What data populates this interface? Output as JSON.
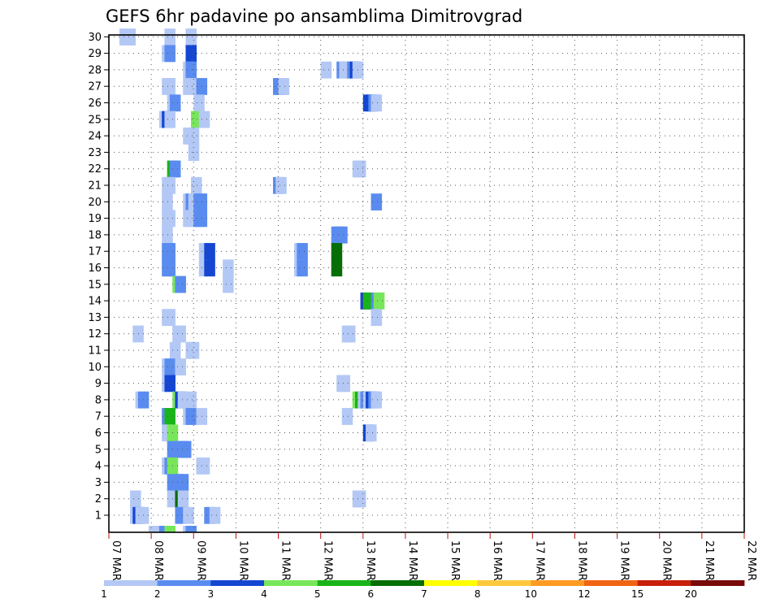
{
  "chart_data": {
    "type": "heatmap",
    "title": "GEFS 6hr padavine po ansamblima Dimitrovgrad",
    "x_tick_labels": [
      "07 MAR",
      "08 MAR",
      "09 MAR",
      "10 MAR",
      "11 MAR",
      "12 MAR",
      "13 MAR",
      "14 MAR",
      "15 MAR",
      "16 MAR",
      "17 MAR",
      "18 MAR",
      "19 MAR",
      "20 MAR",
      "21 MAR",
      "22 MAR"
    ],
    "xlim_days": [
      0,
      15
    ],
    "x_step": "6hr",
    "y_members": [
      1,
      30
    ],
    "grid": true,
    "legend": {
      "position": "bottom",
      "labels": [
        "1",
        "2",
        "3",
        "4",
        "5",
        "6",
        "7",
        "8",
        "10",
        "12",
        "15",
        "20"
      ],
      "colors": [
        "#b4c8f5",
        "#5a8cf0",
        "#1446d2",
        "#78e65a",
        "#19b419",
        "#056e05",
        "#ffff00",
        "#ffc83c",
        "#ff9b23",
        "#f06414",
        "#c81e0a",
        "#780a0a"
      ]
    },
    "cells": [
      {
        "m": 30,
        "t": [
          1.0,
          1.5
        ],
        "c": 1
      },
      {
        "m": 30,
        "t": [
          5.25
        ],
        "c": 1
      },
      {
        "m": 30,
        "t": [
          7.25
        ],
        "c": 1
      },
      {
        "m": 29,
        "t": [
          5.0
        ],
        "c": 1
      },
      {
        "m": 29,
        "t": [
          5.25
        ],
        "c": 2
      },
      {
        "m": 29,
        "t": [
          7.25
        ],
        "c": 3
      },
      {
        "m": 28,
        "t": [
          7.0
        ],
        "c": 1
      },
      {
        "m": 28,
        "t": [
          7.25
        ],
        "c": 2
      },
      {
        "m": 28,
        "t": [
          20.0
        ],
        "c": 1
      },
      {
        "m": 28,
        "t": [
          21.5
        ],
        "c": 2
      },
      {
        "m": 28,
        "t": [
          21.75,
          22.0
        ],
        "c": 1
      },
      {
        "m": 28,
        "t": [
          22.5
        ],
        "c": 2
      },
      {
        "m": 28,
        "t": [
          22.75
        ],
        "c": 3
      },
      {
        "m": 28,
        "t": [
          23.0
        ],
        "c": 1
      },
      {
        "m": 27,
        "t": [
          5.0,
          5.25
        ],
        "c": 1
      },
      {
        "m": 27,
        "t": [
          7.0,
          7.25
        ],
        "c": 1
      },
      {
        "m": 27,
        "t": [
          8.0
        ],
        "c": 1
      },
      {
        "m": 27,
        "t": [
          8.25
        ],
        "c": 2
      },
      {
        "m": 27,
        "t": [
          15.5,
          15.75
        ],
        "c": 2
      },
      {
        "m": 27,
        "t": [
          16.0
        ],
        "c": 1
      },
      {
        "m": 26,
        "t": [
          5.5
        ],
        "c": 1
      },
      {
        "m": 26,
        "t": [
          5.75
        ],
        "c": 2
      },
      {
        "m": 26,
        "t": [
          8.0
        ],
        "c": 1
      },
      {
        "m": 26,
        "t": [
          24.0,
          24.25
        ],
        "c": 3
      },
      {
        "m": 26,
        "t": [
          24.5
        ],
        "c": 2
      },
      {
        "m": 26,
        "t": [
          24.75
        ],
        "c": 1
      },
      {
        "m": 25,
        "t": [
          4.75
        ],
        "c": 1
      },
      {
        "m": 25,
        "t": [
          5.0
        ],
        "c": 3
      },
      {
        "m": 25,
        "t": [
          5.25
        ],
        "c": 1
      },
      {
        "m": 25,
        "t": [
          7.75
        ],
        "c": 4
      },
      {
        "m": 25,
        "t": [
          8.5
        ],
        "c": 1
      },
      {
        "m": 24,
        "t": [
          7.0,
          7.25,
          7.5
        ],
        "c": 1
      },
      {
        "m": 23,
        "t": [
          7.5
        ],
        "c": 1
      },
      {
        "m": 22,
        "t": [
          5.5
        ],
        "c": 5
      },
      {
        "m": 22,
        "t": [
          5.75
        ],
        "c": 2
      },
      {
        "m": 22,
        "t": [
          23.0,
          23.25
        ],
        "c": 1
      },
      {
        "m": 21,
        "t": [
          5.0,
          5.25
        ],
        "c": 1
      },
      {
        "m": 21,
        "t": [
          7.75
        ],
        "c": 1
      },
      {
        "m": 21,
        "t": [
          15.5
        ],
        "c": 2
      },
      {
        "m": 21,
        "t": [
          15.75
        ],
        "c": 1
      },
      {
        "m": 20,
        "t": [
          5.0
        ],
        "c": 1
      },
      {
        "m": 20,
        "t": [
          7.0
        ],
        "c": 1
      },
      {
        "m": 20,
        "t": [
          7.25
        ],
        "c": 2
      },
      {
        "m": 20,
        "t": [
          7.5
        ],
        "c": 1
      },
      {
        "m": 20,
        "t": [
          8.0,
          8.25
        ],
        "c": 2
      },
      {
        "m": 20,
        "t": [
          24.75
        ],
        "c": 2
      },
      {
        "m": 19,
        "t": [
          5.0
        ],
        "c": 1
      },
      {
        "m": 19,
        "t": [
          5.25
        ],
        "c": 1
      },
      {
        "m": 19,
        "t": [
          7.0,
          7.25,
          7.5
        ],
        "c": 1
      },
      {
        "m": 19,
        "t": [
          8.0,
          8.25
        ],
        "c": 2
      },
      {
        "m": 18,
        "t": [
          5.0
        ],
        "c": 1
      },
      {
        "m": 18,
        "t": [
          21.0,
          21.25,
          21.5
        ],
        "c": 2
      },
      {
        "m": 17,
        "t": [
          5.0,
          5.25
        ],
        "c": 2
      },
      {
        "m": 17,
        "t": [
          8.5
        ],
        "c": 1
      },
      {
        "m": 17,
        "t": [
          9.0
        ],
        "c": 3
      },
      {
        "m": 17,
        "t": [
          17.5
        ],
        "c": 1
      },
      {
        "m": 17,
        "t": [
          17.75
        ],
        "c": 2
      },
      {
        "m": 17,
        "t": [
          21.0
        ],
        "c": 6
      },
      {
        "m": 16,
        "t": [
          5.0,
          5.25
        ],
        "c": 2
      },
      {
        "m": 16,
        "t": [
          8.5
        ],
        "c": 1
      },
      {
        "m": 16,
        "t": [
          9.0
        ],
        "c": 3
      },
      {
        "m": 16,
        "t": [
          10.75
        ],
        "c": 1
      },
      {
        "m": 16,
        "t": [
          17.5
        ],
        "c": 1
      },
      {
        "m": 16,
        "t": [
          17.75
        ],
        "c": 2
      },
      {
        "m": 16,
        "t": [
          21.0
        ],
        "c": 6
      },
      {
        "m": 15,
        "t": [
          6.0
        ],
        "c": 4
      },
      {
        "m": 15,
        "t": [
          6.25
        ],
        "c": 2
      },
      {
        "m": 15,
        "t": [
          10.75
        ],
        "c": 1
      },
      {
        "m": 14,
        "t": [
          23.75
        ],
        "c": 3
      },
      {
        "m": 14,
        "t": [
          24.0
        ],
        "c": 5
      },
      {
        "m": 14,
        "t": [
          24.75
        ],
        "c": 2
      },
      {
        "m": 14,
        "t": [
          25.0
        ],
        "c": 4
      },
      {
        "m": 13,
        "t": [
          5.0,
          5.25
        ],
        "c": 1
      },
      {
        "m": 13,
        "t": [
          24.75
        ],
        "c": 1
      },
      {
        "m": 12,
        "t": [
          2.25
        ],
        "c": 1
      },
      {
        "m": 12,
        "t": [
          6.0,
          6.25
        ],
        "c": 1
      },
      {
        "m": 12,
        "t": [
          22.0,
          22.25
        ],
        "c": 1
      },
      {
        "m": 11,
        "t": [
          5.75
        ],
        "c": 1
      },
      {
        "m": 11,
        "t": [
          7.25,
          7.5
        ],
        "c": 1
      },
      {
        "m": 10,
        "t": [
          5.0
        ],
        "c": 1
      },
      {
        "m": 10,
        "t": [
          5.25
        ],
        "c": 2
      },
      {
        "m": 10,
        "t": [
          6.25
        ],
        "c": 1
      },
      {
        "m": 9,
        "t": [
          5.0
        ],
        "c": 1
      },
      {
        "m": 9,
        "t": [
          5.25
        ],
        "c": 3
      },
      {
        "m": 9,
        "t": [
          21.5,
          21.75
        ],
        "c": 1
      },
      {
        "m": 8,
        "t": [
          2.5
        ],
        "c": 1
      },
      {
        "m": 8,
        "t": [
          2.75
        ],
        "c": 2
      },
      {
        "m": 8,
        "t": [
          6.0
        ],
        "c": 4
      },
      {
        "m": 8,
        "t": [
          6.25
        ],
        "c": 3
      },
      {
        "m": 8,
        "t": [
          6.5
        ],
        "c": 1
      },
      {
        "m": 8,
        "t": [
          7.25
        ],
        "c": 1
      },
      {
        "m": 8,
        "t": [
          23.0
        ],
        "c": 4
      },
      {
        "m": 8,
        "t": [
          23.25
        ],
        "c": 5
      },
      {
        "m": 8,
        "t": [
          23.5
        ],
        "c": 1
      },
      {
        "m": 8,
        "t": [
          23.75
        ],
        "c": 2
      },
      {
        "m": 8,
        "t": [
          24.0
        ],
        "c": 1
      },
      {
        "m": 8,
        "t": [
          24.25
        ],
        "c": 3
      },
      {
        "m": 8,
        "t": [
          24.5
        ],
        "c": 2
      },
      {
        "m": 8,
        "t": [
          24.75
        ],
        "c": 1
      },
      {
        "m": 7,
        "t": [
          5.0
        ],
        "c": 2
      },
      {
        "m": 7,
        "t": [
          5.25
        ],
        "c": 5
      },
      {
        "m": 7,
        "t": [
          7.0
        ],
        "c": 1
      },
      {
        "m": 7,
        "t": [
          7.25
        ],
        "c": 2
      },
      {
        "m": 7,
        "t": [
          8.25
        ],
        "c": 1
      },
      {
        "m": 7,
        "t": [
          22.0
        ],
        "c": 1
      },
      {
        "m": 6,
        "t": [
          5.0
        ],
        "c": 1
      },
      {
        "m": 6,
        "t": [
          5.5
        ],
        "c": 4
      },
      {
        "m": 6,
        "t": [
          24.0
        ],
        "c": 3
      },
      {
        "m": 6,
        "t": [
          24.25
        ],
        "c": 1
      },
      {
        "m": 5,
        "t": [
          5.5
        ],
        "c": 2
      },
      {
        "m": 5,
        "t": [
          6.25,
          6.5,
          6.75
        ],
        "c": 2
      },
      {
        "m": 4,
        "t": [
          5.0
        ],
        "c": 1
      },
      {
        "m": 4,
        "t": [
          5.25
        ],
        "c": 2
      },
      {
        "m": 4,
        "t": [
          5.5
        ],
        "c": 4
      },
      {
        "m": 4,
        "t": [
          8.25,
          8.5
        ],
        "c": 1
      },
      {
        "m": 3,
        "t": [
          5.5
        ],
        "c": 2
      },
      {
        "m": 3,
        "t": [
          6.25,
          6.5
        ],
        "c": 2
      },
      {
        "m": 2,
        "t": [
          2.0
        ],
        "c": 1
      },
      {
        "m": 2,
        "t": [
          5.5
        ],
        "c": 1
      },
      {
        "m": 2,
        "t": [
          6.25
        ],
        "c": 6
      },
      {
        "m": 2,
        "t": [
          6.5
        ],
        "c": 1
      },
      {
        "m": 2,
        "t": [
          23.0,
          23.25
        ],
        "c": 1
      },
      {
        "m": 1,
        "t": [
          2.0
        ],
        "c": 1
      },
      {
        "m": 1,
        "t": [
          2.25
        ],
        "c": 3
      },
      {
        "m": 1,
        "t": [
          2.5,
          2.75
        ],
        "c": 1
      },
      {
        "m": 1,
        "t": [
          6.25
        ],
        "c": 2
      },
      {
        "m": 1,
        "t": [
          7.0
        ],
        "c": 1
      },
      {
        "m": 1,
        "t": [
          9.0
        ],
        "c": 2
      },
      {
        "m": 1,
        "t": [
          9.5
        ],
        "c": 1
      },
      {
        "m": 0,
        "t": [
          3.75,
          4.0,
          4.25
        ],
        "c": 1
      },
      {
        "m": 0,
        "t": [
          4.5
        ],
        "c": 1
      },
      {
        "m": 0,
        "t": [
          4.75,
          5.0
        ],
        "c": 2
      },
      {
        "m": 0,
        "t": [
          5.25
        ],
        "c": 4
      },
      {
        "m": 0,
        "t": [
          7.0
        ],
        "c": 1
      },
      {
        "m": 0,
        "t": [
          7.25
        ],
        "c": 2
      }
    ]
  }
}
